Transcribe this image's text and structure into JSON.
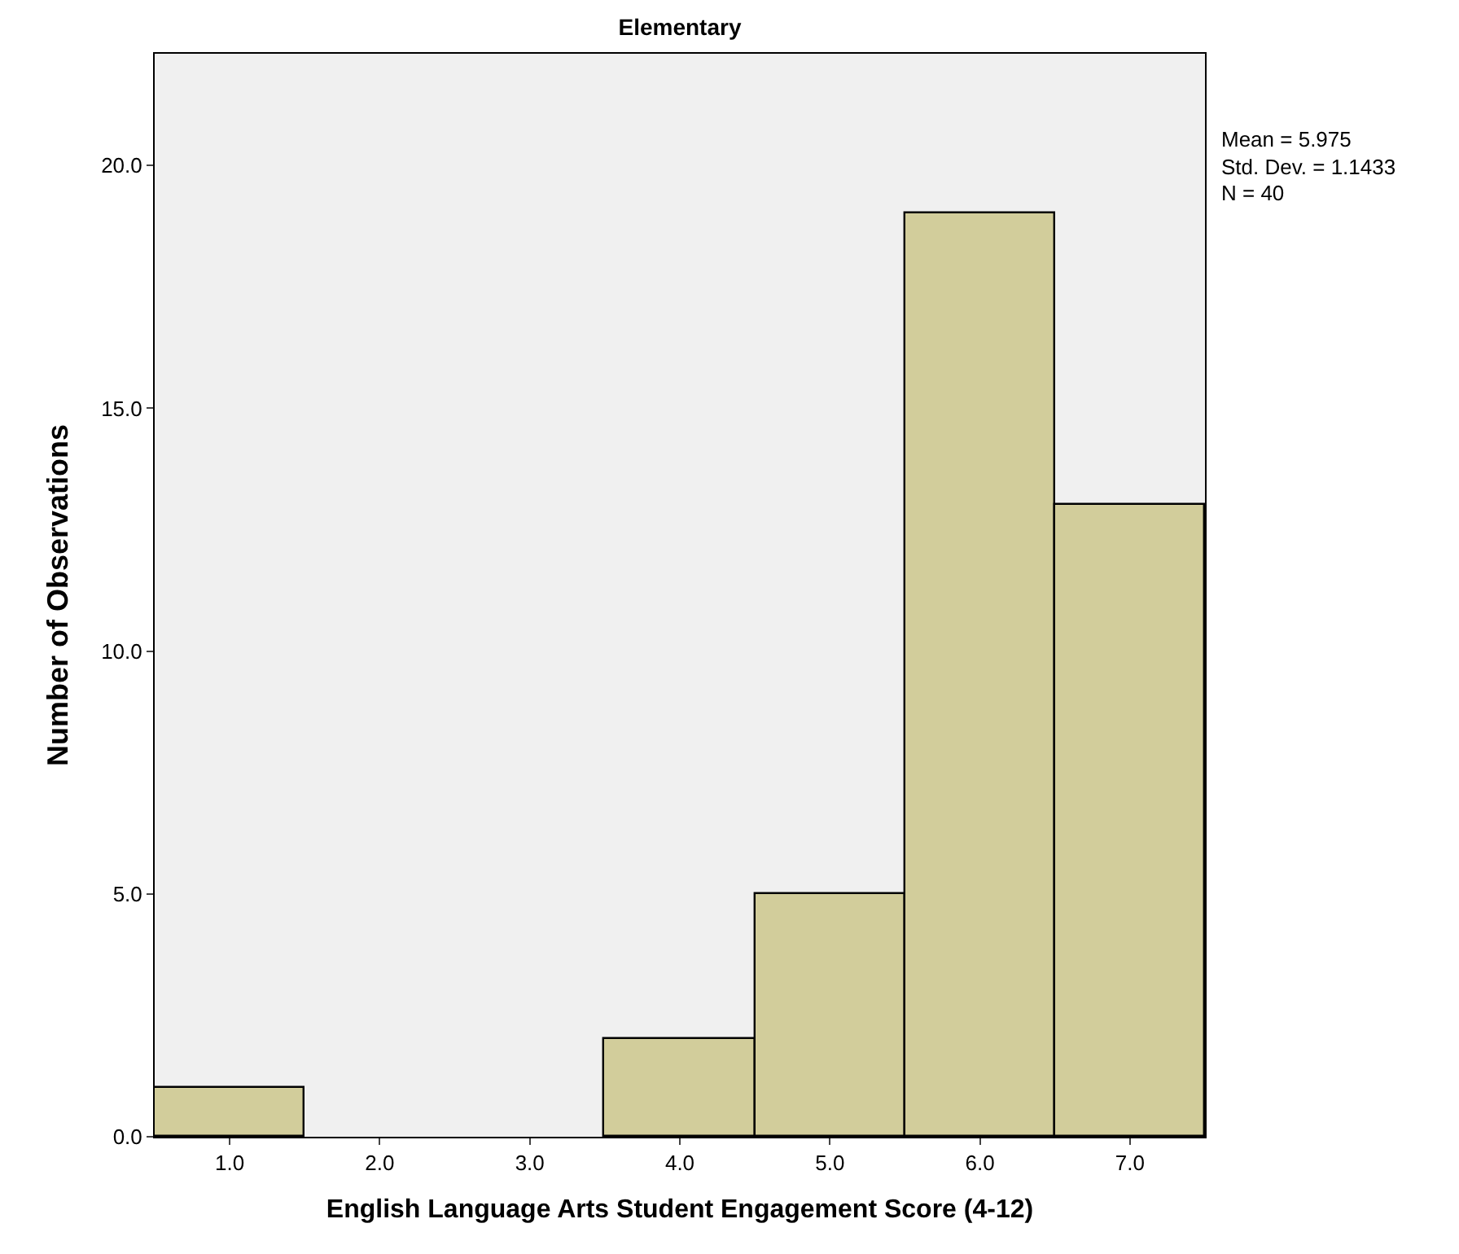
{
  "chart_data": {
    "type": "histogram",
    "title": "Elementary",
    "xlabel": "English Language Arts Student Engagement Score (4-12)",
    "ylabel": "Number of Observations",
    "bins": [
      0.5,
      1.5,
      2.5,
      3.5,
      4.5,
      5.5,
      6.5,
      7.5
    ],
    "values": [
      1,
      0,
      0,
      2,
      5,
      19,
      13
    ],
    "color": "#d2cd9b",
    "xlim": [
      0.5,
      7.5
    ],
    "xticks": [
      {
        "value": 1,
        "label": "1.0"
      },
      {
        "value": 2,
        "label": "2.0"
      },
      {
        "value": 3,
        "label": "3.0"
      },
      {
        "value": 4,
        "label": "4.0"
      },
      {
        "value": 5,
        "label": "5.0"
      },
      {
        "value": 6,
        "label": "6.0"
      },
      {
        "value": 7,
        "label": "7.0"
      }
    ],
    "ylim": [
      0,
      22.3
    ],
    "yticks": [
      {
        "value": 0,
        "label": "0.0"
      },
      {
        "value": 5,
        "label": "5.0"
      },
      {
        "value": 10,
        "label": "10.0"
      },
      {
        "value": 15,
        "label": "15.0"
      },
      {
        "value": 20,
        "label": "20.0"
      }
    ],
    "grid": false,
    "annotations": [
      "Mean = 5.975",
      "Std. Dev. = 1.1433",
      "N = 40"
    ]
  }
}
